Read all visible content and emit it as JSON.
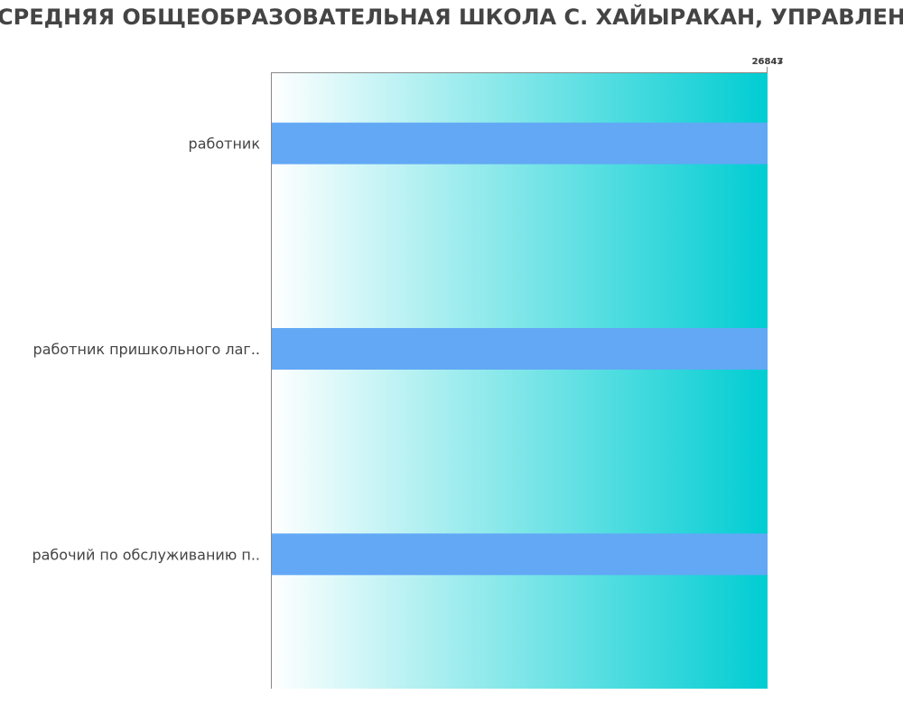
{
  "chart_data": {
    "type": "bar",
    "orientation": "horizontal",
    "title": "СРЕДНЯЯ ОБЩЕОБРАЗОВАТЕЛЬНАЯ ШКОЛА С. ХАЙЫРАКАН, УПРАВЛЕН",
    "categories": [
      "работник",
      "работник пришкольного лаг..",
      "рабочий по обслуживанию п.."
    ],
    "values": [
      26843,
      26847,
      26847
    ],
    "tick_labels": [
      "26843",
      "26847"
    ],
    "xlim": [
      0,
      26847
    ],
    "grid": false,
    "legend": "none",
    "colors": {
      "bar": "#62a8f5",
      "background_start": "#ffffff",
      "background_end": "#00cdd2",
      "text": "#444444",
      "axis": "#888888"
    }
  }
}
